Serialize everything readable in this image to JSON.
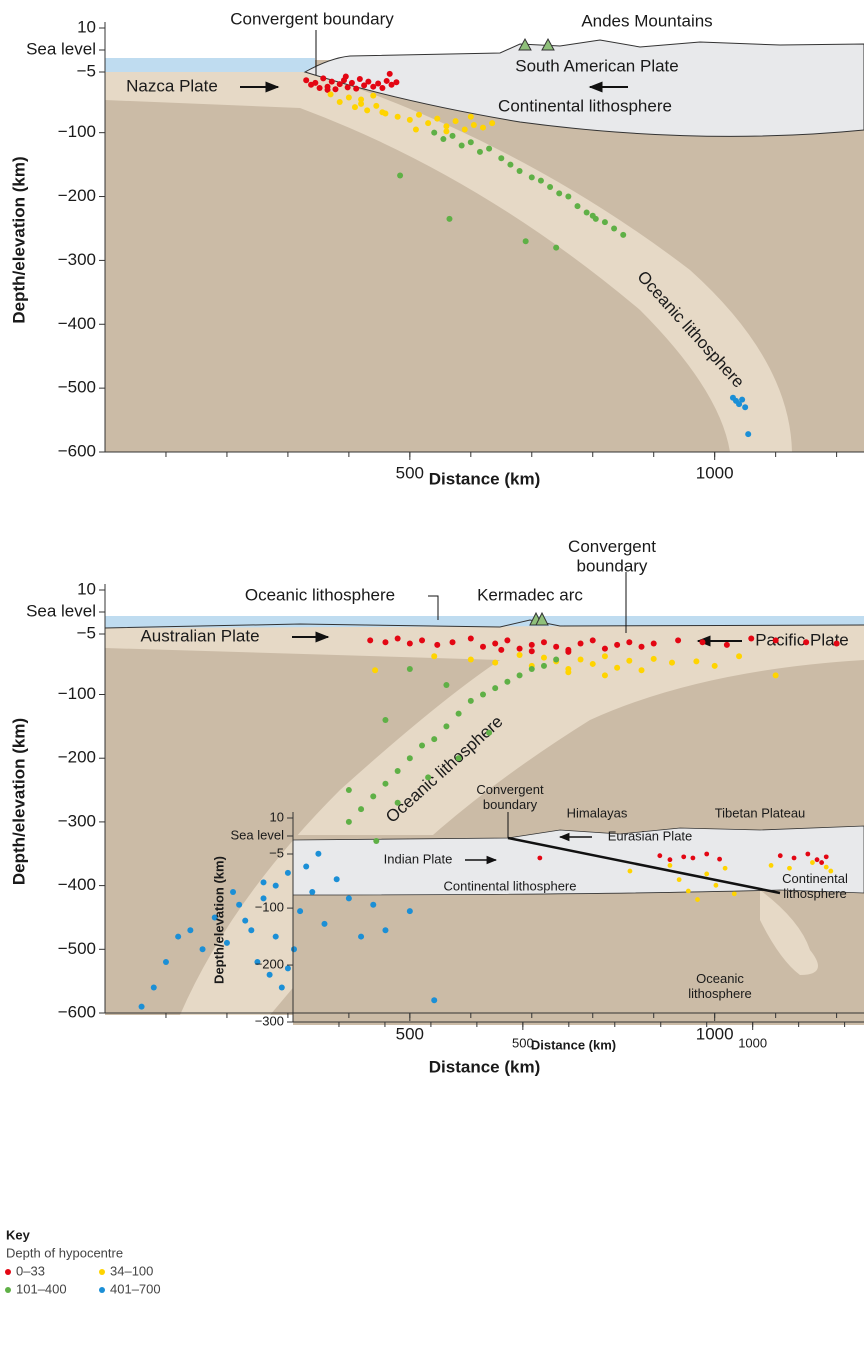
{
  "chart_data": [
    {
      "type": "scatter",
      "y_label": "Depth/elevation (km)",
      "x_label": "Distance (km)",
      "annotations": [
        "Convergent boundary",
        "Andes Mountains",
        "Nazca Plate",
        "South American Plate",
        "Continental lithosphere",
        "Oceanic lithosphere"
      ],
      "xlim": [
        0,
        1240
      ],
      "xticks": [
        500,
        1000
      ],
      "ylim": [
        -600,
        10
      ],
      "yticks": [
        10,
        {
          "value": 0,
          "label": "Sea level"
        },
        {
          "value": -5,
          "label": "−5"
        },
        {
          "value": -100,
          "label": "−100"
        },
        {
          "value": -200,
          "label": "−200"
        },
        {
          "value": -300,
          "label": "−300"
        },
        {
          "value": -400,
          "label": "−400"
        },
        {
          "value": -500,
          "label": "−500"
        },
        {
          "value": -600,
          "label": "−600"
        }
      ],
      "series": [
        {
          "color": "#e30613",
          "x": [
            330,
            338,
            345,
            352,
            358,
            365,
            372,
            378,
            385,
            392,
            398,
            405,
            412,
            418,
            425,
            432,
            440,
            448,
            455,
            462,
            470,
            478,
            365,
            395,
            467
          ],
          "values": [
            -18,
            -25,
            -22,
            -30,
            -15,
            -28,
            -20,
            -32,
            -24,
            -18,
            -29,
            -22,
            -31,
            -16,
            -26,
            -20,
            -28,
            -23,
            -30,
            -19,
            -25,
            -21,
            -33,
            -12,
            -8
          ]
        },
        {
          "color": "#ffd400",
          "x": [
            370,
            385,
            400,
            410,
            420,
            430,
            445,
            460,
            480,
            500,
            515,
            530,
            545,
            560,
            575,
            590,
            605,
            620,
            635,
            420,
            455,
            510,
            560,
            600,
            440
          ],
          "values": [
            -40,
            -52,
            -45,
            -60,
            -48,
            -65,
            -58,
            -70,
            -75,
            -80,
            -72,
            -85,
            -78,
            -90,
            -82,
            -95,
            -88,
            -92,
            -85,
            -55,
            -68,
            -95,
            -98,
            -75,
            -42
          ]
        },
        {
          "color": "#5fb046",
          "x": [
            540,
            555,
            570,
            585,
            600,
            615,
            630,
            650,
            665,
            680,
            700,
            715,
            730,
            745,
            760,
            775,
            790,
            805,
            820,
            835,
            850,
            484,
            565,
            740,
            690,
            800
          ],
          "values": [
            -100,
            -110,
            -105,
            -120,
            -115,
            -130,
            -125,
            -140,
            -150,
            -160,
            -170,
            -175,
            -185,
            -195,
            -200,
            -215,
            -225,
            -235,
            -240,
            -250,
            -260,
            -167,
            -235,
            -280,
            -270,
            -230
          ]
        },
        {
          "color": "#1b8fd6",
          "x": [
            1030,
            1035,
            1040,
            1045,
            1050,
            1055
          ],
          "values": [
            -515,
            -520,
            -525,
            -518,
            -530,
            -572
          ]
        }
      ]
    },
    {
      "type": "scatter",
      "y_label": "Depth/elevation (km)",
      "x_label": "Distance (km)",
      "annotations": [
        "Convergent boundary",
        "Oceanic lithosphere",
        "Kermadec arc",
        "Australian Plate",
        "Pacific Plate",
        "Oceanic lithosphere"
      ],
      "xlim": [
        0,
        1240
      ],
      "xticks": [
        500,
        1000
      ],
      "ylim": [
        -600,
        10
      ],
      "yticks": [
        10,
        {
          "value": 0,
          "label": "Sea level"
        },
        {
          "value": -5,
          "label": "−5"
        },
        {
          "value": -100,
          "label": "−100"
        },
        {
          "value": -200,
          "label": "−200"
        },
        {
          "value": -300,
          "label": "−300"
        },
        {
          "value": -400,
          "label": "−400"
        },
        {
          "value": -500,
          "label": "−500"
        },
        {
          "value": -600,
          "label": "−600"
        }
      ],
      "series": [
        {
          "color": "#e30613",
          "x": [
            435,
            460,
            480,
            500,
            520,
            545,
            570,
            600,
            620,
            640,
            660,
            680,
            700,
            720,
            740,
            760,
            780,
            800,
            820,
            840,
            860,
            880,
            900,
            940,
            980,
            1020,
            1060,
            1100,
            1150,
            1200,
            650,
            700,
            760
          ],
          "values": [
            -15,
            -18,
            -12,
            -20,
            -15,
            -22,
            -18,
            -12,
            -25,
            -20,
            -15,
            -28,
            -22,
            -18,
            -25,
            -30,
            -20,
            -15,
            -28,
            -22,
            -18,
            -25,
            -20,
            -15,
            -18,
            -22,
            -12,
            -15,
            -18,
            -20,
            -30,
            -32,
            -33
          ]
        },
        {
          "color": "#ffd400",
          "x": [
            443,
            540,
            600,
            640,
            680,
            700,
            720,
            740,
            760,
            780,
            800,
            820,
            840,
            860,
            880,
            900,
            930,
            970,
            1000,
            1040,
            1100,
            760,
            820
          ],
          "values": [
            -62,
            -40,
            -45,
            -50,
            -38,
            -55,
            -42,
            -48,
            -60,
            -45,
            -52,
            -40,
            -58,
            -47,
            -62,
            -44,
            -50,
            -48,
            -55,
            -40,
            -70,
            -65,
            -70
          ]
        },
        {
          "color": "#5fb046",
          "x": [
            400,
            420,
            440,
            460,
            480,
            500,
            520,
            540,
            560,
            580,
            600,
            620,
            640,
            660,
            680,
            700,
            720,
            740,
            480,
            530,
            580,
            630,
            400,
            460,
            560,
            500,
            445
          ],
          "values": [
            -300,
            -280,
            -260,
            -240,
            -220,
            -200,
            -180,
            -170,
            -150,
            -130,
            -110,
            -100,
            -90,
            -80,
            -70,
            -60,
            -55,
            -45,
            -270,
            -230,
            -200,
            -160,
            -250,
            -140,
            -85,
            -60,
            -330
          ]
        },
        {
          "color": "#1b8fd6",
          "x": [
            60,
            80,
            100,
            120,
            140,
            160,
            180,
            200,
            220,
            240,
            260,
            280,
            300,
            320,
            340,
            360,
            380,
            400,
            420,
            440,
            460,
            500,
            540,
            250,
            270,
            290,
            310,
            330,
            230,
            210,
            350,
            300,
            260,
            280
          ],
          "values": [
            -590,
            -560,
            -520,
            -480,
            -470,
            -500,
            -450,
            -490,
            -430,
            -470,
            -420,
            -400,
            -380,
            -440,
            -410,
            -460,
            -390,
            -420,
            -480,
            -430,
            -470,
            -440,
            -580,
            -520,
            -540,
            -560,
            -500,
            -370,
            -455,
            -410,
            -350,
            -530,
            -395,
            -480
          ]
        }
      ]
    },
    {
      "type": "scatter",
      "y_label": "Depth/elevation (km)",
      "x_label": "Distance (km)",
      "annotations": [
        "Convergent boundary",
        "Himalayas",
        "Tibetan Plateau",
        "Eurasian Plate",
        "Indian Plate",
        "Continental lithosphere",
        "Continental lithosphere",
        "Oceanic lithosphere"
      ],
      "xlim": [
        0,
        1240
      ],
      "xticks": [
        500,
        1000
      ],
      "ylim": [
        -300,
        10
      ],
      "yticks": [
        10,
        {
          "value": 0,
          "label": "Sea level"
        },
        {
          "value": -5,
          "label": "−5"
        },
        {
          "value": -100,
          "label": "−100"
        },
        {
          "value": -200,
          "label": "−200"
        },
        {
          "value": -300,
          "label": "−300"
        }
      ],
      "series": [
        {
          "color": "#e30613",
          "x": [
            537,
            798,
            820,
            850,
            870,
            900,
            928,
            1060,
            1090,
            1120,
            1140,
            1160,
            1150
          ],
          "values": [
            -12,
            -8,
            -15,
            -10,
            -12,
            -5,
            -14,
            -8,
            -12,
            -5,
            -15,
            -10,
            -20
          ]
        },
        {
          "color": "#ffd400",
          "x": [
            733,
            820,
            840,
            860,
            880,
            900,
            920,
            940,
            960,
            1040,
            1080,
            1130,
            1160,
            1170
          ],
          "values": [
            -35,
            -25,
            -50,
            -70,
            -85,
            -40,
            -60,
            -30,
            -75,
            -25,
            -30,
            -20,
            -28,
            -35
          ]
        }
      ]
    }
  ],
  "legend": {
    "title": "Key",
    "subtitle": "Depth of hypocentre",
    "items": [
      {
        "name": "0–33",
        "color": "#e30613"
      },
      {
        "name": "34–100",
        "color": "#ffd400"
      },
      {
        "name": "101–400",
        "color": "#5fb046"
      },
      {
        "name": "401–700",
        "color": "#1b8fd6"
      }
    ]
  }
}
